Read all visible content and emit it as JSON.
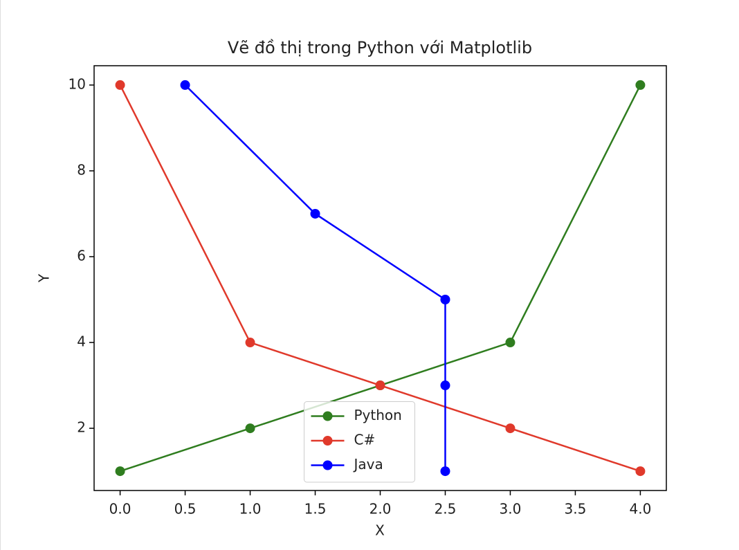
{
  "chart_data": {
    "type": "line",
    "title": "Vẽ đồ thị trong Python với Matplotlib",
    "x_label": "X",
    "y_label": "Y",
    "series": [
      {
        "name": "Python",
        "color": "#2f7d1f",
        "x": [
          0,
          1,
          2,
          3,
          4
        ],
        "values": [
          1,
          2,
          3,
          4,
          10
        ]
      },
      {
        "name": "C#",
        "color": "#e0392b",
        "x": [
          0,
          1,
          2,
          3,
          4
        ],
        "values": [
          10,
          4,
          3,
          2,
          1
        ]
      },
      {
        "name": "Java",
        "color": "#0000ff",
        "x": [
          0.5,
          1.5,
          2.5,
          2.5,
          2.5
        ],
        "values": [
          10,
          7,
          5,
          3,
          1
        ]
      }
    ],
    "xlim": [
      -0.2,
      4.2
    ],
    "ylim": [
      0.55,
      10.45
    ],
    "xticks": [
      {
        "value": 0,
        "label": "0.0"
      },
      0.5,
      {
        "value": 1,
        "label": "1.0"
      },
      1.5,
      {
        "value": 2,
        "label": "2.0"
      },
      2.5,
      {
        "value": 3,
        "label": "3.0"
      },
      3.5,
      {
        "value": 4,
        "label": "4.0"
      }
    ],
    "yticks": [
      2,
      4,
      6,
      8,
      10
    ],
    "legend": "lower center",
    "grid": false
  }
}
